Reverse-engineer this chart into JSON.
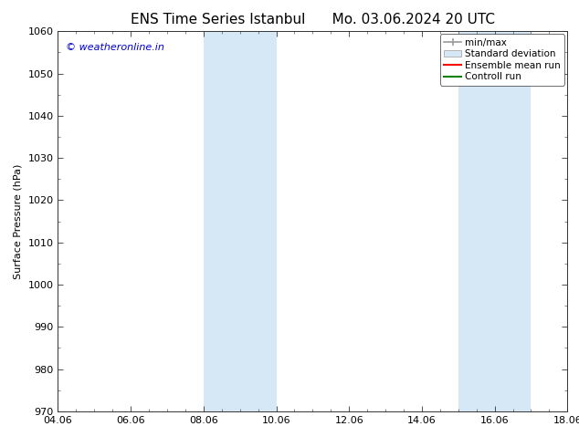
{
  "title_left": "ENS Time Series Istanbul",
  "title_right": "Mo. 03.06.2024 20 UTC",
  "ylabel": "Surface Pressure (hPa)",
  "ylim": [
    970,
    1060
  ],
  "yticks": [
    970,
    980,
    990,
    1000,
    1010,
    1020,
    1030,
    1040,
    1050,
    1060
  ],
  "xlim_start": 0,
  "xlim_end": 14,
  "xtick_labels": [
    "04.06",
    "06.06",
    "08.06",
    "10.06",
    "12.06",
    "14.06",
    "16.06",
    "18.06"
  ],
  "xtick_positions": [
    0,
    2,
    4,
    6,
    8,
    10,
    12,
    14
  ],
  "shaded_bands": [
    {
      "xmin": 4.0,
      "xmax": 6.0
    },
    {
      "xmin": 11.0,
      "xmax": 13.0
    }
  ],
  "shade_color": "#d6e8f5",
  "watermark_text": "© weatheronline.in",
  "watermark_color": "#0000cc",
  "legend_labels": [
    "min/max",
    "Standard deviation",
    "Ensemble mean run",
    "Controll run"
  ],
  "legend_colors": [
    "#aaaaaa",
    "#bbccdd",
    "#ff0000",
    "#008000"
  ],
  "background_color": "#ffffff",
  "plot_bg_color": "#ffffff",
  "title_fontsize": 11,
  "axis_label_fontsize": 8,
  "tick_fontsize": 8,
  "watermark_fontsize": 8,
  "legend_fontsize": 7.5
}
